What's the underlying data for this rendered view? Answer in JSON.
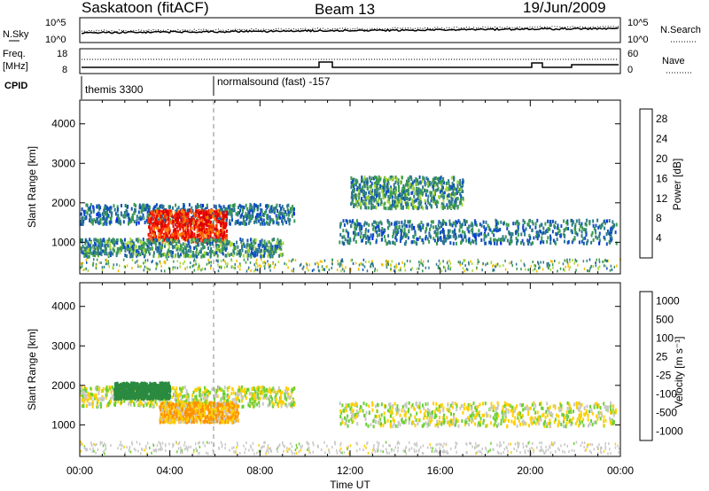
{
  "header": {
    "station": "Saskatoon (fitACF)",
    "beam": "Beam 13",
    "date": "19/Jun/2009"
  },
  "noise_panel": {
    "left_label": "N.Sky",
    "right_label": "N.Search",
    "left_ticks": [
      "10^5",
      "10^0"
    ],
    "right_ticks": [
      "10^5",
      "10^0"
    ]
  },
  "freq_panel": {
    "left_label_1": "Freq.",
    "left_label_2": "[MHz]",
    "right_label": "Nave",
    "left_ticks": [
      "18",
      "8"
    ],
    "right_ticks": [
      "60",
      "0"
    ]
  },
  "cpid": {
    "label": "CPID",
    "segments": [
      "themis 3300",
      "normalsound (fast) -157"
    ]
  },
  "colors": {
    "power_scale": [
      "#0020ff",
      "#1050c0",
      "#2f7a8c",
      "#3a9a50",
      "#a8d838",
      "#f0c000",
      "#ff7a00",
      "#ff2800",
      "#e00000"
    ],
    "velocity_scale": [
      "#1030d0",
      "#206090",
      "#2a8a40",
      "#6ad030",
      "#c8c8c8",
      "#ffd000",
      "#ff9000",
      "#ff5000",
      "#ff0000"
    ]
  },
  "chart_data": [
    {
      "type": "heatmap",
      "title": "",
      "ylabel": "Slant Range [km]",
      "xlabel": "",
      "ylim": [
        200,
        4600
      ],
      "yticks": [
        "1000",
        "2000",
        "3000",
        "4000"
      ],
      "x_ticks": [
        "00:00",
        "04:00",
        "08:00",
        "12:00",
        "16:00",
        "20:00",
        "00:00"
      ],
      "colorbar_label": "Power [dB]",
      "colorbar_ticks": [
        "4",
        "8",
        "12",
        "16",
        "20",
        "24",
        "28"
      ],
      "colorbar_range": [
        0,
        30
      ],
      "regions": [
        {
          "t_start": 0.0,
          "t_end": 9.5,
          "range_center": 1750,
          "range_width": 500,
          "power": 8
        },
        {
          "t_start": 3.0,
          "t_end": 6.5,
          "range_center": 1450,
          "range_width": 800,
          "power": 26
        },
        {
          "t_start": 0.0,
          "t_end": 9.0,
          "range_center": 900,
          "range_width": 450,
          "power": 10
        },
        {
          "t_start": 11.5,
          "t_end": 23.8,
          "range_center": 1300,
          "range_width": 600,
          "power": 8
        },
        {
          "t_start": 12.0,
          "t_end": 17.0,
          "range_center": 2300,
          "range_width": 800,
          "power": 10
        }
      ]
    },
    {
      "type": "heatmap",
      "title": "",
      "ylabel": "Slant Range [km]",
      "xlabel": "Time UT",
      "ylim": [
        200,
        4600
      ],
      "yticks": [
        "1000",
        "2000",
        "3000",
        "4000"
      ],
      "x_ticks": [
        "00:00",
        "04:00",
        "08:00",
        "12:00",
        "16:00",
        "20:00",
        "00:00"
      ],
      "colorbar_label": "Velocity [m s⁻¹]",
      "colorbar_ticks": [
        "1000",
        "500",
        "100",
        "25",
        "-25",
        "-100",
        "-500",
        "-1000"
      ],
      "regions": [
        {
          "t_start": 0.0,
          "t_end": 9.5,
          "range_center": 1750,
          "range_width": 500,
          "velocity": 0
        },
        {
          "t_start": 3.5,
          "t_end": 7.0,
          "range_center": 1350,
          "range_width": 500,
          "velocity": -100
        },
        {
          "t_start": 1.5,
          "t_end": 4.0,
          "range_center": 1900,
          "range_width": 400,
          "velocity": 300
        },
        {
          "t_start": 11.5,
          "t_end": 23.8,
          "range_center": 1300,
          "range_width": 600,
          "velocity": 0
        }
      ]
    }
  ]
}
